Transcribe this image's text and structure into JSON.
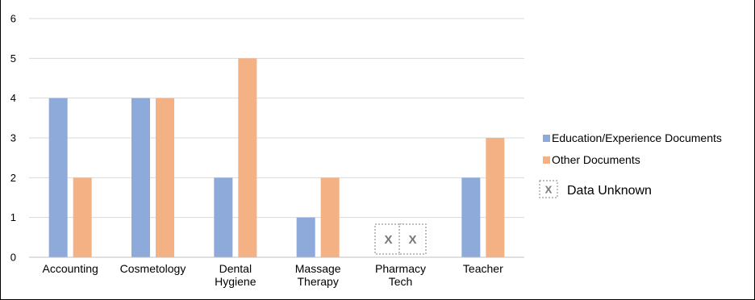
{
  "chart_data": {
    "type": "bar",
    "title": "",
    "xlabel": "",
    "ylabel": "",
    "ylim": [
      0,
      6
    ],
    "yticks": [
      0,
      1,
      2,
      3,
      4,
      5,
      6
    ],
    "categories": [
      [
        "Accounting"
      ],
      [
        "Cosmetology"
      ],
      [
        "Dental",
        "Hygiene"
      ],
      [
        "Massage",
        "Therapy"
      ],
      [
        "Pharmacy",
        "Tech"
      ],
      [
        "Teacher"
      ]
    ],
    "series": [
      {
        "name": "Education/Experience Documents",
        "color": "#8eaadb",
        "values": [
          4,
          4,
          2,
          1,
          null,
          2
        ]
      },
      {
        "name": "Other Documents",
        "color": "#f4b183",
        "values": [
          2,
          4,
          5,
          2,
          null,
          3
        ]
      }
    ],
    "unknown_marker": "X",
    "grid": true,
    "legend_position": "right"
  },
  "legend": {
    "unknown_label": "Data Unknown",
    "unknown_marker": "X"
  }
}
